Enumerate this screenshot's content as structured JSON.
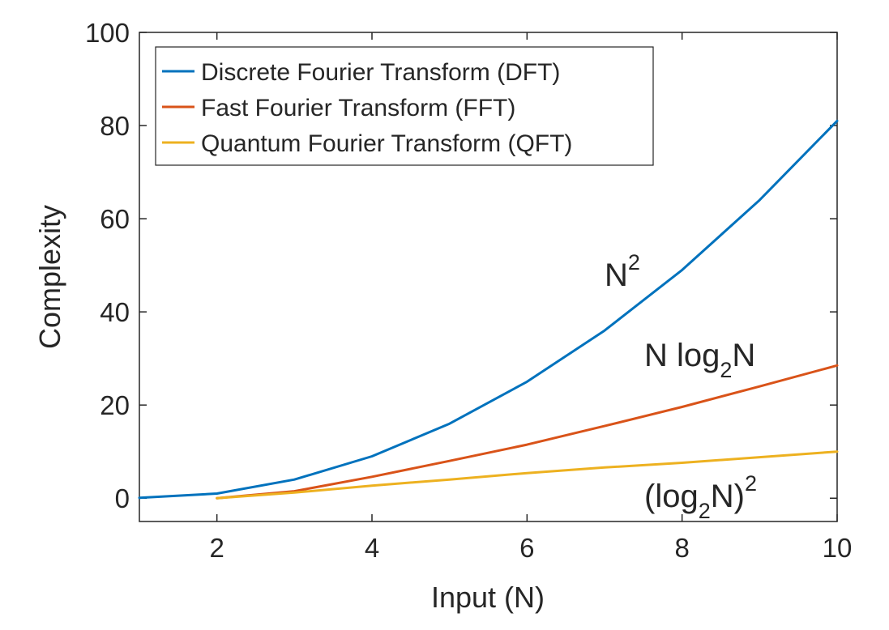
{
  "chart_data": {
    "type": "line",
    "xlabel": "Input (N)",
    "ylabel": "Complexity",
    "xlim": [
      1,
      10
    ],
    "ylim": [
      -5,
      100
    ],
    "xticks": [
      2,
      4,
      6,
      8,
      10
    ],
    "yticks": [
      0,
      20,
      40,
      60,
      80,
      100
    ],
    "grid": false,
    "legend_position": "top-left",
    "series": [
      {
        "name": "Discrete Fourier Transform (DFT)",
        "color": "#0072BD",
        "x": [
          1,
          2,
          3,
          4,
          5,
          6,
          7,
          8,
          9,
          10
        ],
        "y": [
          0.1,
          1,
          4,
          9,
          16,
          25,
          36,
          49,
          64,
          81
        ]
      },
      {
        "name": "Fast Fourier Transform (FFT)",
        "color": "#D95319",
        "x": [
          2,
          3,
          4,
          5,
          6,
          7,
          8,
          9,
          10
        ],
        "y": [
          0,
          1.5,
          4.6,
          8,
          11.5,
          15.5,
          19.6,
          24,
          28.5
        ]
      },
      {
        "name": "Quantum Fourier Transform (QFT)",
        "color": "#EDB120",
        "x": [
          2,
          3,
          4,
          5,
          6,
          7,
          8,
          9,
          10
        ],
        "y": [
          0,
          1.2,
          2.7,
          4,
          5.4,
          6.6,
          7.6,
          8.8,
          10
        ]
      }
    ],
    "annotations": [
      {
        "base": "N",
        "sup": "2",
        "x": 7.4,
        "y": 45
      },
      {
        "prefix": "N log",
        "sub": "2",
        "suffix": "N",
        "x": 7.7,
        "y": 28
      },
      {
        "prefix": "(log",
        "sub": "2",
        "suffix": "N)",
        "sup": "2",
        "x": 7.7,
        "y": -2
      }
    ]
  }
}
